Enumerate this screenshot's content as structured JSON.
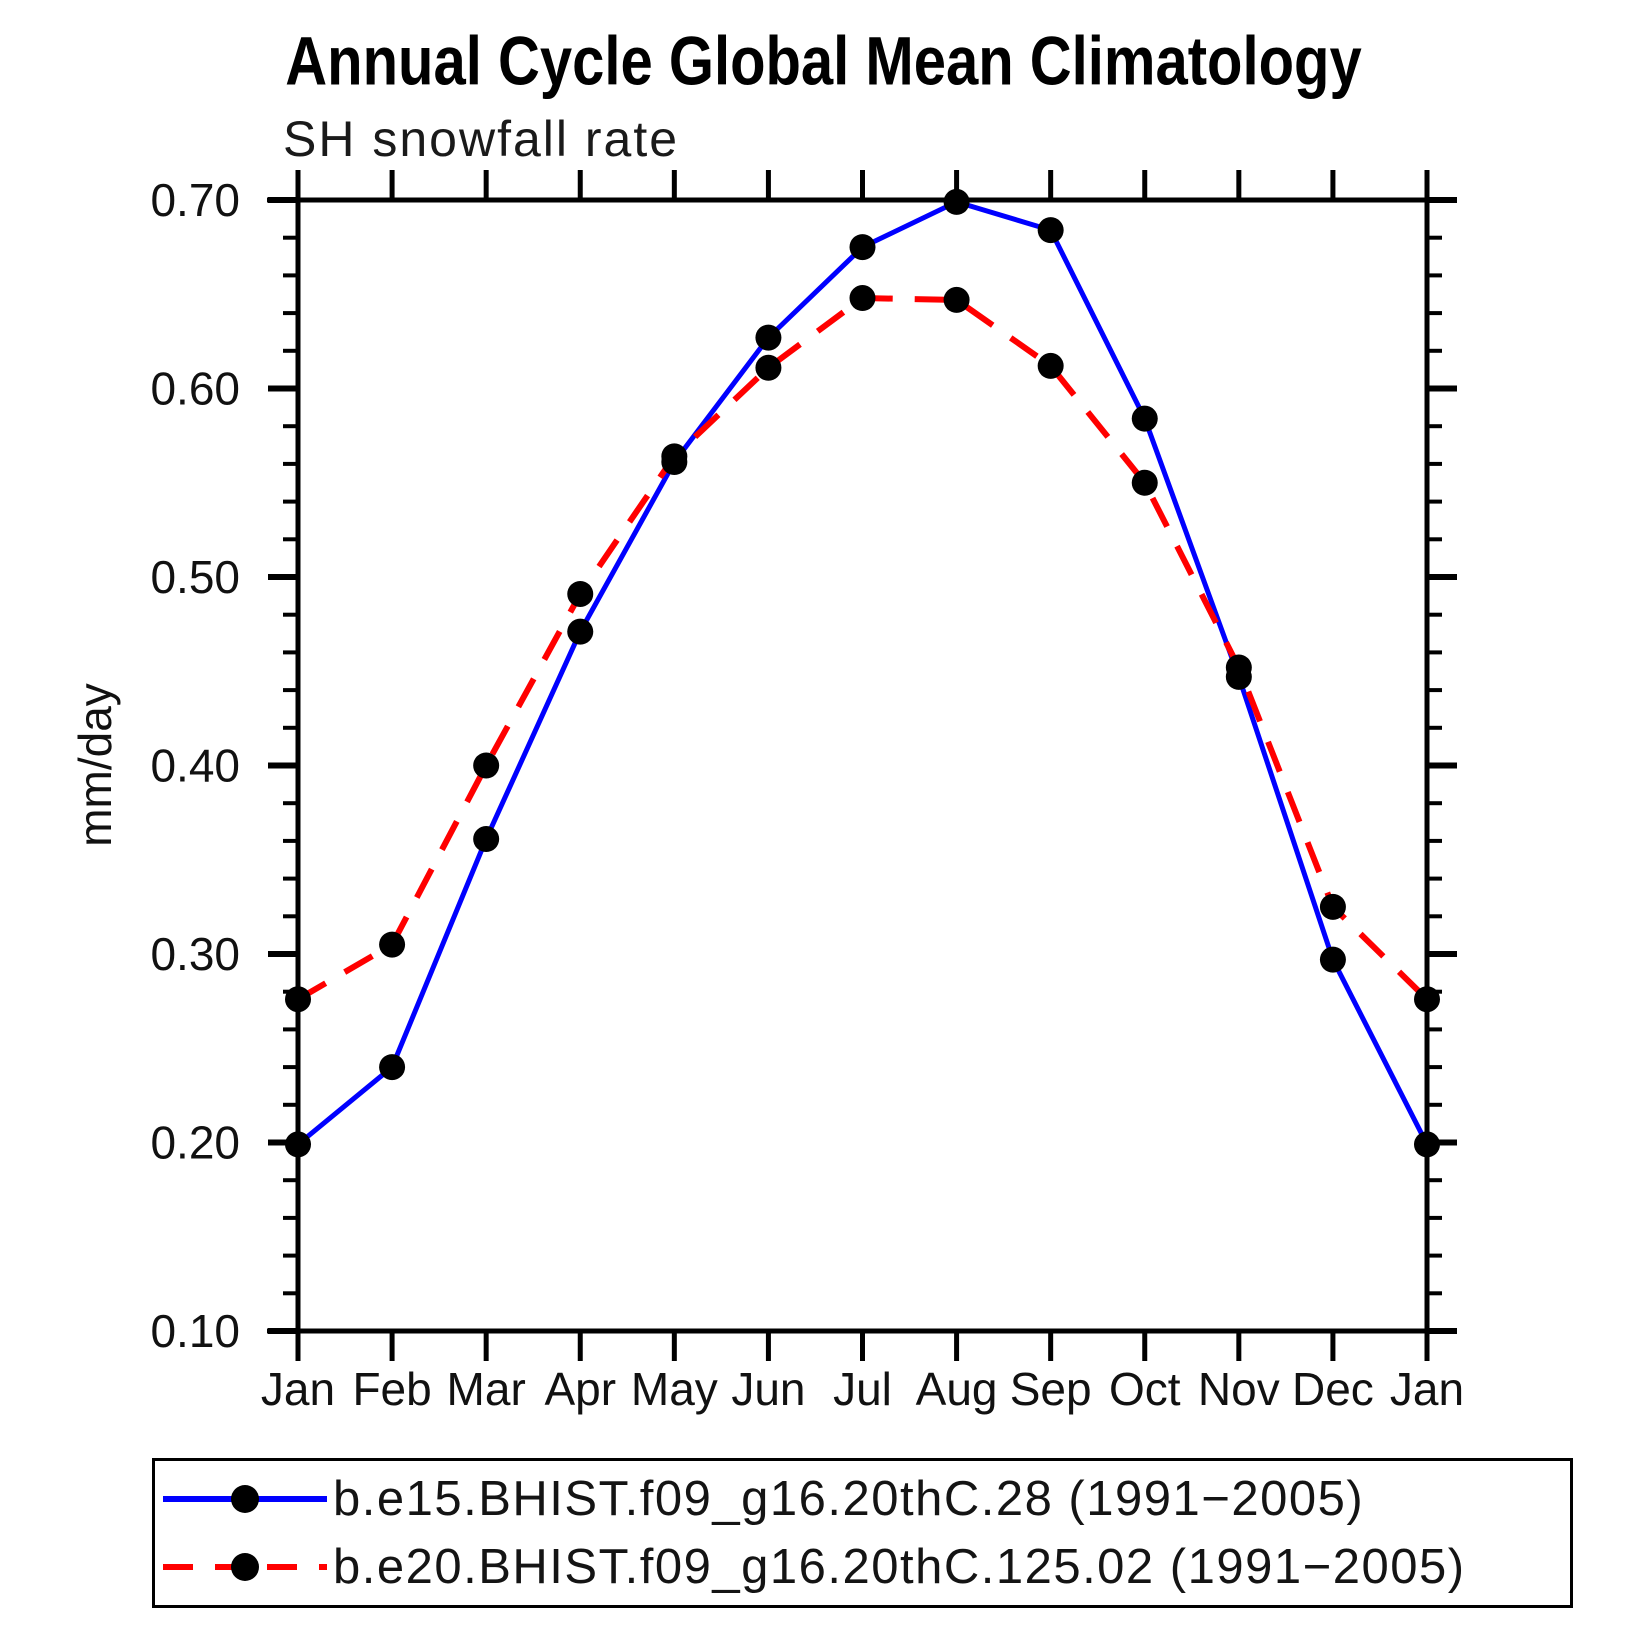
{
  "title": "Annual Cycle Global Mean Climatology",
  "subtitle": "SH snowfall rate",
  "ylabel": "mm/day",
  "colors": {
    "series1": "#0000ff",
    "series2": "#ff0000",
    "marker": "#000000",
    "axis": "#000000"
  },
  "chart_data": {
    "type": "line",
    "title": "Annual Cycle Global Mean Climatology",
    "subtitle": "SH snowfall rate",
    "xlabel": "",
    "ylabel": "mm/day",
    "categories": [
      "Jan",
      "Feb",
      "Mar",
      "Apr",
      "May",
      "Jun",
      "Jul",
      "Aug",
      "Sep",
      "Oct",
      "Nov",
      "Dec",
      "Jan"
    ],
    "ylim": [
      0.1,
      0.7
    ],
    "ytick_major_step": 0.1,
    "ytick_minor_step": 0.02,
    "ytick_labels": [
      "0.10",
      "0.20",
      "0.30",
      "0.40",
      "0.50",
      "0.60",
      "0.70"
    ],
    "grid": false,
    "legend_position": "bottom",
    "series": [
      {
        "name": "b.e15.BHIST.f09_g16.20thC.28 (1991−2005)",
        "color": "#0000ff",
        "line_style": "solid",
        "marker": "circle",
        "marker_color": "#000000",
        "values": [
          0.199,
          0.24,
          0.361,
          0.471,
          0.561,
          0.627,
          0.675,
          0.699,
          0.684,
          0.584,
          0.447,
          0.297,
          0.199
        ]
      },
      {
        "name": "b.e20.BHIST.f09_g16.20thC.125.02 (1991−2005)",
        "color": "#ff0000",
        "line_style": "dashed",
        "marker": "circle",
        "marker_color": "#000000",
        "values": [
          0.276,
          0.305,
          0.4,
          0.491,
          0.564,
          0.611,
          0.648,
          0.647,
          0.612,
          0.55,
          0.452,
          0.325,
          0.276
        ]
      }
    ]
  }
}
